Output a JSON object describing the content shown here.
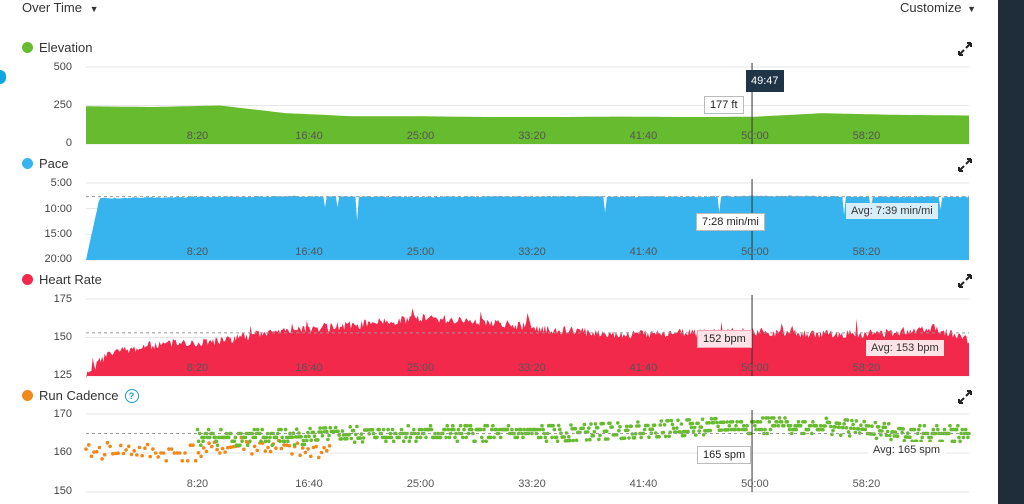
{
  "header": {
    "view_label": "Over Time",
    "customize_label": "Customize"
  },
  "colors": {
    "elevation": "#66bb2f",
    "pace": "#37b3ee",
    "heart_rate": "#f3294c",
    "cadence_orange": "#f0891a",
    "cadence_green": "#66bb2f",
    "time_flag": "#1f3447"
  },
  "x_ticks": [
    "8:20",
    "16:40",
    "25:00",
    "33:20",
    "41:40",
    "50:00",
    "58:20"
  ],
  "cursor_time": "49:47",
  "elevation": {
    "title": "Elevation",
    "y_ticks": [
      "500",
      "250",
      "0"
    ],
    "tooltip": "177 ft"
  },
  "pace": {
    "title": "Pace",
    "y_ticks": [
      "5:00",
      "10:00",
      "15:00",
      "20:00"
    ],
    "tooltip": "7:28 min/mi",
    "avg": "Avg: 7:39 min/mi"
  },
  "heart_rate": {
    "title": "Heart Rate",
    "y_ticks": [
      "175",
      "150",
      "125"
    ],
    "tooltip": "152 bpm",
    "avg": "Avg: 153 bpm"
  },
  "cadence": {
    "title": "Run Cadence",
    "y_ticks": [
      "170",
      "160",
      "150"
    ],
    "tooltip": "165 spm",
    "avg": "Avg: 165 spm"
  },
  "chart_data": [
    {
      "type": "area",
      "title": "Elevation",
      "ylabel": "",
      "xlim_seconds": [
        0,
        3960
      ],
      "ylim": [
        0,
        500
      ],
      "x": [
        0,
        300,
        600,
        900,
        1200,
        1500,
        1800,
        2100,
        2400,
        2700,
        3000,
        3300,
        3600,
        3960
      ],
      "values": [
        245,
        240,
        250,
        200,
        180,
        180,
        175,
        175,
        178,
        175,
        177,
        200,
        190,
        185
      ]
    },
    {
      "type": "area",
      "title": "Pace",
      "ylabel": "",
      "xlim_seconds": [
        0,
        3960
      ],
      "ylim_minutes": [
        5,
        20
      ],
      "inverted": true,
      "x": [
        0,
        60,
        300,
        900,
        1500,
        2100,
        2700,
        3000,
        3300,
        3600,
        3960
      ],
      "values_minutes": [
        20,
        8.0,
        7.8,
        7.6,
        7.7,
        7.6,
        7.7,
        7.5,
        7.6,
        7.7,
        7.7
      ],
      "avg_minutes": 7.65
    },
    {
      "type": "area",
      "title": "Heart Rate",
      "ylabel": "",
      "xlim_seconds": [
        0,
        3960
      ],
      "ylim": [
        125,
        175
      ],
      "x": [
        0,
        100,
        300,
        600,
        900,
        1200,
        1500,
        1800,
        2100,
        2400,
        2700,
        3000,
        3300,
        3600,
        3800,
        3960
      ],
      "values": [
        125,
        140,
        145,
        148,
        155,
        158,
        163,
        160,
        155,
        152,
        153,
        154,
        152,
        153,
        157,
        148
      ],
      "avg": 153
    },
    {
      "type": "scatter",
      "title": "Run Cadence",
      "ylabel": "",
      "xlim_seconds": [
        0,
        3960
      ],
      "ylim": [
        150,
        170
      ],
      "avg": 165,
      "series": [
        {
          "name": "",
          "color": "#f0891a",
          "x": [
            0,
            150,
            300,
            500,
            700,
            900,
            1000,
            1100
          ],
          "values": [
            160,
            161,
            160,
            160,
            162,
            161,
            160,
            162
          ]
        },
        {
          "name": "",
          "color": "#66bb2f",
          "x": [
            500,
            900,
            1300,
            1700,
            2100,
            2500,
            2900,
            3300,
            3700,
            3960
          ],
          "values": [
            164,
            164,
            165,
            165,
            165,
            166,
            167,
            167,
            165,
            165
          ]
        }
      ]
    }
  ]
}
